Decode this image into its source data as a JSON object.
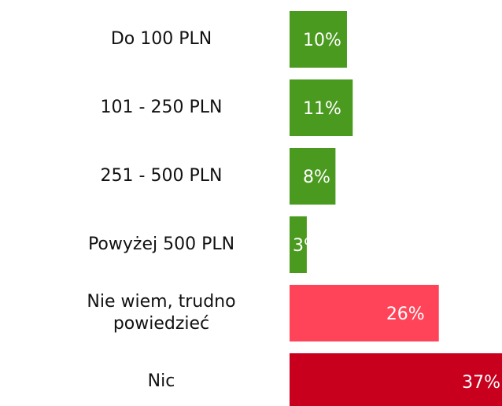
{
  "chart_data": {
    "type": "bar",
    "orientation": "horizontal",
    "categories": [
      "Do 100 PLN",
      "101 - 250 PLN",
      "251 - 500 PLN",
      "Powyżej 500 PLN",
      "Nie wiem, trudno powiedzieć",
      "Nic"
    ],
    "values": [
      10,
      11,
      8,
      3,
      26,
      37
    ],
    "value_labels": [
      "10%",
      "11%",
      "8%",
      "3%",
      "26%",
      "37%"
    ],
    "colors": [
      "#4a9a1f",
      "#4a9a1f",
      "#4a9a1f",
      "#4a9a1f",
      "#ff4459",
      "#c8001e"
    ]
  }
}
